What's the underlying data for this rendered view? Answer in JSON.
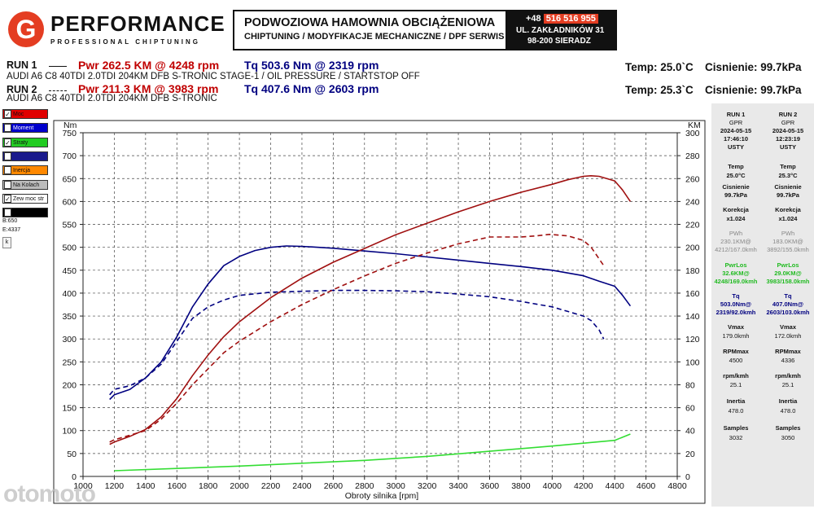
{
  "brand": {
    "logo_letter": "G",
    "name": "PERFORMANCE",
    "tagline": "PROFESSIONAL CHIPTUNING"
  },
  "header": {
    "title": "PODWOZIOWA HAMOWNIA OBCIĄŻENIOWA",
    "subtitle": "CHIPTUNING / MODYFIKACJE MECHANICZNE / DPF SERWIS",
    "phone_prefix": "+48",
    "phone_number": "516 516 955",
    "address_line1": "UL. ZAKŁADNIKÓW 31",
    "address_line2": "98-200 SIERADZ"
  },
  "runs": [
    {
      "label": "RUN 1",
      "pwr": "Pwr  262.5 KM @ 4248 rpm",
      "tq": "Tq  503.6 Nm @ 2319 rpm",
      "description": "AUDI A6 C8 40TDI 2.0TDI 204KM DFB S-TRONIC STAGE-1 / OIL PRESSURE / STARTSTOP OFF",
      "temp": "Temp: 25.0`C",
      "pressure": "Cisnienie: 99.7kPa"
    },
    {
      "label": "RUN 2",
      "pwr": "Pwr  211.3 KM @ 3983 rpm",
      "tq": "Tq  407.6 Nm @ 2603 rpm",
      "description": "AUDI A6 C8 40TDI 2.0TDI 204KM DFB S-TRONIC",
      "temp": "Temp: 25.3`C",
      "pressure": "Cisnienie: 99.7kPa"
    }
  ],
  "checkboxes": [
    {
      "label": "Moc",
      "checked": "✓",
      "color": "#e00000"
    },
    {
      "label": "Moment",
      "checked": "✓",
      "color": "#0000cc"
    },
    {
      "label": "Straty",
      "checked": "✓",
      "color": "#22cc22"
    },
    {
      "label": "",
      "checked": "",
      "color": "#1a1a8c"
    },
    {
      "label": "Inercja",
      "checked": "",
      "color": "#ff8800"
    },
    {
      "label": "Na Kolach",
      "checked": "",
      "color": "#bbbbbb"
    },
    {
      "label": "Zew moc str",
      "checked": "✓",
      "color": "#ffffff"
    },
    {
      "label": "",
      "checked": "",
      "color": "#000000"
    }
  ],
  "sidebar_values": {
    "b": "B:650",
    "e": "E:4337",
    "k_button": "k"
  },
  "side_panel": {
    "columns": [
      {
        "run": "RUN 1",
        "id": "GPR",
        "date": "2024-05-15",
        "time": "17:46:10",
        "place": "USTY",
        "temp_label": "Temp",
        "temp": "25.0°C",
        "press_label": "Cisnienie",
        "press": "99.7kPa",
        "corr_label": "Korekcja",
        "corr": "x1.024",
        "pwh_label": "PWh",
        "pwh1": "230.1KM@",
        "pwh2": "4212/167.0kmh",
        "pwrlos_label": "PwrLos",
        "pwrlos1": "32.6KM@",
        "pwrlos2": "4248/169.0kmh",
        "tq_label": "Tq",
        "tq1": "503.0Nm@",
        "tq2": "2319/92.0kmh",
        "vmax_label": "Vmax",
        "vmax": "179.0kmh",
        "rpmmax_label": "RPMmax",
        "rpmmax": "4500",
        "rpmkmh_label": "rpm/kmh",
        "rpmkmh": "25.1",
        "inertia_label": "Inertia",
        "inertia": "478.0",
        "samples_label": "Samples",
        "samples": "3032"
      },
      {
        "run": "RUN 2",
        "id": "GPR",
        "date": "2024-05-15",
        "time": "12:23:19",
        "place": "USTY",
        "temp_label": "Temp",
        "temp": "25.3°C",
        "press_label": "Cisnienie",
        "press": "99.7kPa",
        "corr_label": "Korekcja",
        "corr": "x1.024",
        "pwh_label": "PWh",
        "pwh1": "183.0KM@",
        "pwh2": "3892/155.0kmh",
        "pwrlos_label": "PwrLos",
        "pwrlos1": "29.0KM@",
        "pwrlos2": "3983/158.0kmh",
        "tq_label": "Tq",
        "tq1": "407.0Nm@",
        "tq2": "2603/103.0kmh",
        "vmax_label": "Vmax",
        "vmax": "172.0kmh",
        "rpmmax_label": "RPMmax",
        "rpmmax": "4336",
        "rpmkmh_label": "rpm/kmh",
        "rpmkmh": "25.1",
        "inertia_label": "Inertia",
        "inertia": "478.0",
        "samples_label": "Samples",
        "samples": "3050"
      }
    ]
  },
  "watermark": "otomoto",
  "chart_data": {
    "type": "line",
    "xlabel": "Obroty silnika [rpm]",
    "ylabel_left": "Nm",
    "ylabel_right": "KM",
    "xlim": [
      1000,
      4800
    ],
    "ylim_left": [
      0,
      750
    ],
    "ylim_right": [
      0,
      300
    ],
    "x_ticks": [
      1000,
      1200,
      1400,
      1600,
      1800,
      2000,
      2200,
      2400,
      2600,
      2800,
      3000,
      3200,
      3400,
      3600,
      3800,
      4000,
      4200,
      4400,
      4600,
      4800
    ],
    "y_ticks_left": [
      0,
      50,
      100,
      150,
      200,
      250,
      300,
      350,
      400,
      450,
      500,
      550,
      600,
      650,
      700,
      750
    ],
    "y_ticks_right": [
      0,
      20,
      40,
      60,
      80,
      100,
      120,
      140,
      160,
      180,
      200,
      220,
      240,
      260,
      280,
      300
    ],
    "grid": true,
    "series": [
      {
        "name": "RUN 1 Tq",
        "axis": "left",
        "color": "#000080",
        "dash": "",
        "x": [
          1170,
          1200,
          1300,
          1400,
          1500,
          1600,
          1700,
          1800,
          1900,
          2000,
          2100,
          2200,
          2300,
          2400,
          2600,
          2800,
          3000,
          3200,
          3400,
          3600,
          3800,
          4000,
          4200,
          4300,
          4400,
          4450,
          4500
        ],
        "y": [
          168,
          178,
          190,
          215,
          250,
          305,
          370,
          420,
          460,
          480,
          493,
          500,
          503,
          502,
          498,
          492,
          486,
          479,
          472,
          465,
          458,
          450,
          438,
          426,
          415,
          395,
          372
        ]
      },
      {
        "name": "RUN 2 Tq",
        "axis": "left",
        "color": "#000080",
        "dash": "6,4",
        "x": [
          1170,
          1200,
          1300,
          1400,
          1500,
          1600,
          1700,
          1800,
          1900,
          2000,
          2200,
          2400,
          2600,
          2800,
          3000,
          3200,
          3400,
          3600,
          3800,
          4000,
          4100,
          4200,
          4250,
          4300,
          4330
        ],
        "y": [
          178,
          190,
          198,
          215,
          245,
          295,
          345,
          370,
          385,
          395,
          402,
          404,
          406,
          406,
          405,
          403,
          398,
          392,
          382,
          370,
          360,
          350,
          340,
          320,
          300
        ]
      },
      {
        "name": "RUN 1 Pwr",
        "axis": "right",
        "color": "#a01010",
        "dash": "",
        "x": [
          1170,
          1200,
          1300,
          1400,
          1500,
          1600,
          1700,
          1800,
          1900,
          2000,
          2200,
          2400,
          2600,
          2800,
          3000,
          3200,
          3400,
          3600,
          3800,
          4000,
          4100,
          4200,
          4248,
          4300,
          4400,
          4450,
          4500
        ],
        "y": [
          28,
          30,
          35,
          41,
          52,
          68,
          88,
          106,
          122,
          135,
          156,
          173,
          187,
          199,
          211,
          221,
          231,
          240,
          248,
          255,
          259,
          262,
          262.5,
          262,
          258,
          250,
          240
        ]
      },
      {
        "name": "RUN 2 Pwr",
        "axis": "right",
        "color": "#a01010",
        "dash": "6,4",
        "x": [
          1170,
          1200,
          1300,
          1400,
          1500,
          1600,
          1700,
          1800,
          1900,
          2000,
          2200,
          2400,
          2600,
          2800,
          3000,
          3200,
          3400,
          3600,
          3800,
          3900,
          3983,
          4100,
          4200,
          4250,
          4300,
          4330
        ],
        "y": [
          30,
          32,
          36,
          40,
          50,
          64,
          80,
          94,
          108,
          118,
          135,
          150,
          163,
          175,
          186,
          195,
          203,
          209,
          209,
          210,
          211.3,
          210,
          206,
          200,
          190,
          184
        ]
      },
      {
        "name": "Straty",
        "axis": "right",
        "color": "#33dd33",
        "dash": "",
        "x": [
          1200,
          1600,
          2000,
          2400,
          2800,
          3200,
          3600,
          4000,
          4400,
          4500
        ],
        "y": [
          5,
          7,
          9,
          11.5,
          14,
          17.5,
          22,
          26.5,
          31.5,
          37
        ]
      }
    ]
  }
}
